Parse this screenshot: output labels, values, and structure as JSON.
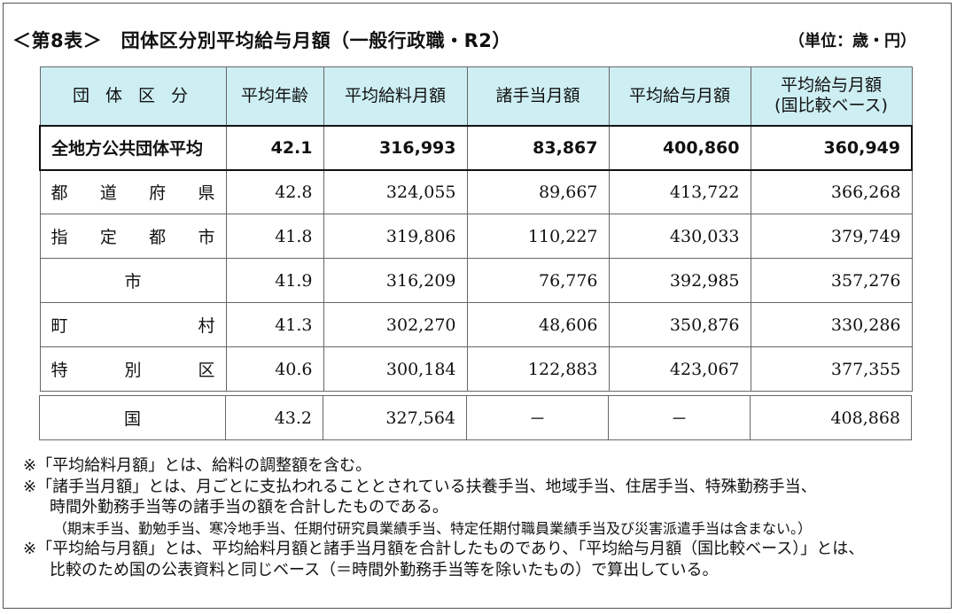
{
  "title": "＜第8表＞　団体区分別平均給与月額（一般行政職・R2）",
  "unit": "（単位：歳・円）",
  "columns": [
    "団 体 区 分",
    "平均年齢",
    "平均給料月額",
    "諸手当月額",
    "平均給与月額",
    "平均給与月額",
    "(国比較ベース)"
  ],
  "average_row": {
    "label": "全地方公共団体平均",
    "age": "42.1",
    "salary": "316,993",
    "allowance": "83,867",
    "total": "400,860",
    "national_base": "360,949"
  },
  "rows": [
    {
      "label_chars": [
        "都",
        "道",
        "府",
        "県"
      ],
      "age": "42.8",
      "salary": "324,055",
      "allowance": "89,667",
      "total": "413,722",
      "national_base": "366,268"
    },
    {
      "label_chars": [
        "指",
        "定",
        "都",
        "市"
      ],
      "age": "41.8",
      "salary": "319,806",
      "allowance": "110,227",
      "total": "430,033",
      "national_base": "379,749"
    },
    {
      "label": "市",
      "age": "41.9",
      "salary": "316,209",
      "allowance": "76,776",
      "total": "392,985",
      "national_base": "357,276"
    },
    {
      "label_chars": [
        "町",
        "村"
      ],
      "age": "41.3",
      "salary": "302,270",
      "allowance": "48,606",
      "total": "350,876",
      "national_base": "330,286"
    },
    {
      "label_chars": [
        "特",
        "別",
        "区"
      ],
      "age": "40.6",
      "salary": "300,184",
      "allowance": "122,883",
      "total": "423,067",
      "national_base": "377,355"
    }
  ],
  "national_row": {
    "label": "国",
    "age": "43.2",
    "salary": "327,564",
    "allowance": "－",
    "total": "－",
    "national_base": "408,868"
  },
  "notes": {
    "n1": "※「平均給料月額」とは、給料の調整額を含む。",
    "n2a": "※「諸手当月額」とは、月ごとに支払われることとされている扶養手当、地域手当、住居手当、特殊勤務手当、",
    "n2b": "時間外勤務手当等の諸手当の額を合計したものである。",
    "n2c": "（期末手当、勤勉手当、寒冷地手当、任期付研究員業績手当、特定任期付職員業績手当及び災害派遣手当は含まない。）",
    "n3a": "※「平均給与月額」とは、平均給料月額と諸手当月額を合計したものであり、「平均給与月額（国比較ベース）」とは、",
    "n3b": "比較のため国の公表資料と同じベース（＝時間外勤務手当等を除いたもの）で算出している。"
  }
}
